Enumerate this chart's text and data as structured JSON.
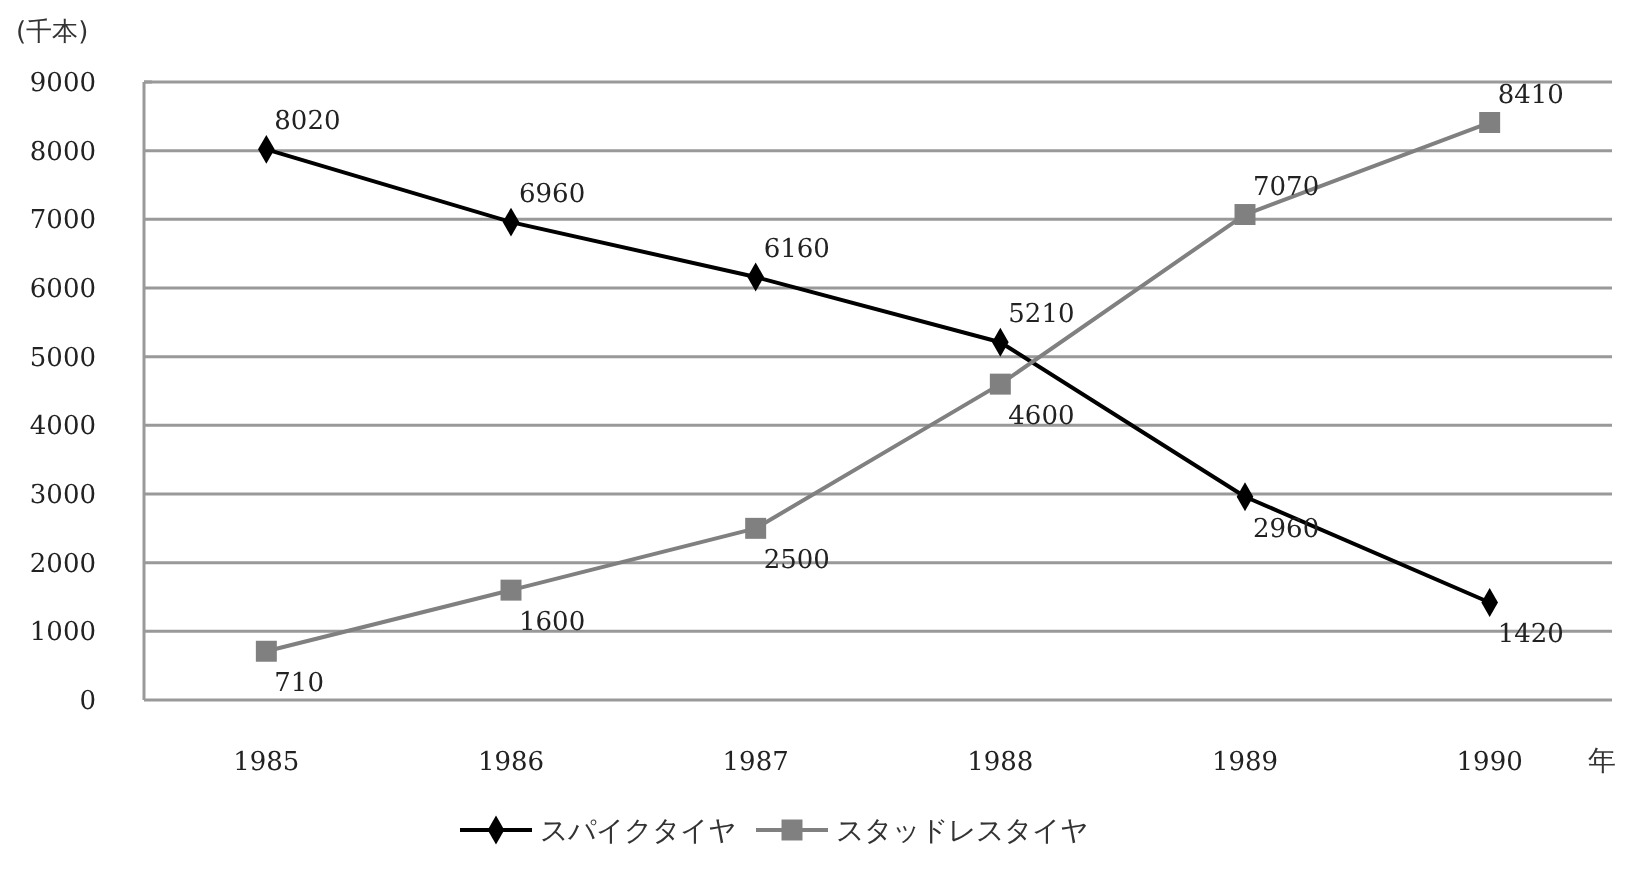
{
  "chart_data": {
    "type": "line",
    "ylabel": "(千本)",
    "xlabel": "年",
    "categories": [
      "1985",
      "1986",
      "1987",
      "1988",
      "1989",
      "1990"
    ],
    "series": [
      {
        "name": "スパイクタイヤ",
        "color": "#000000",
        "marker": "diamond",
        "values": [
          8020,
          6960,
          6160,
          5210,
          2960,
          1420
        ]
      },
      {
        "name": "スタッドレスタイヤ",
        "color": "#808080",
        "marker": "square",
        "values": [
          710,
          1600,
          2500,
          4600,
          7070,
          8410
        ]
      }
    ],
    "ylim": [
      0,
      9000
    ],
    "yticks": [
      0,
      1000,
      2000,
      3000,
      4000,
      5000,
      6000,
      7000,
      8000,
      9000
    ],
    "grid": "y",
    "legend": "bottom",
    "data_labels": true,
    "line_style": "solid"
  }
}
